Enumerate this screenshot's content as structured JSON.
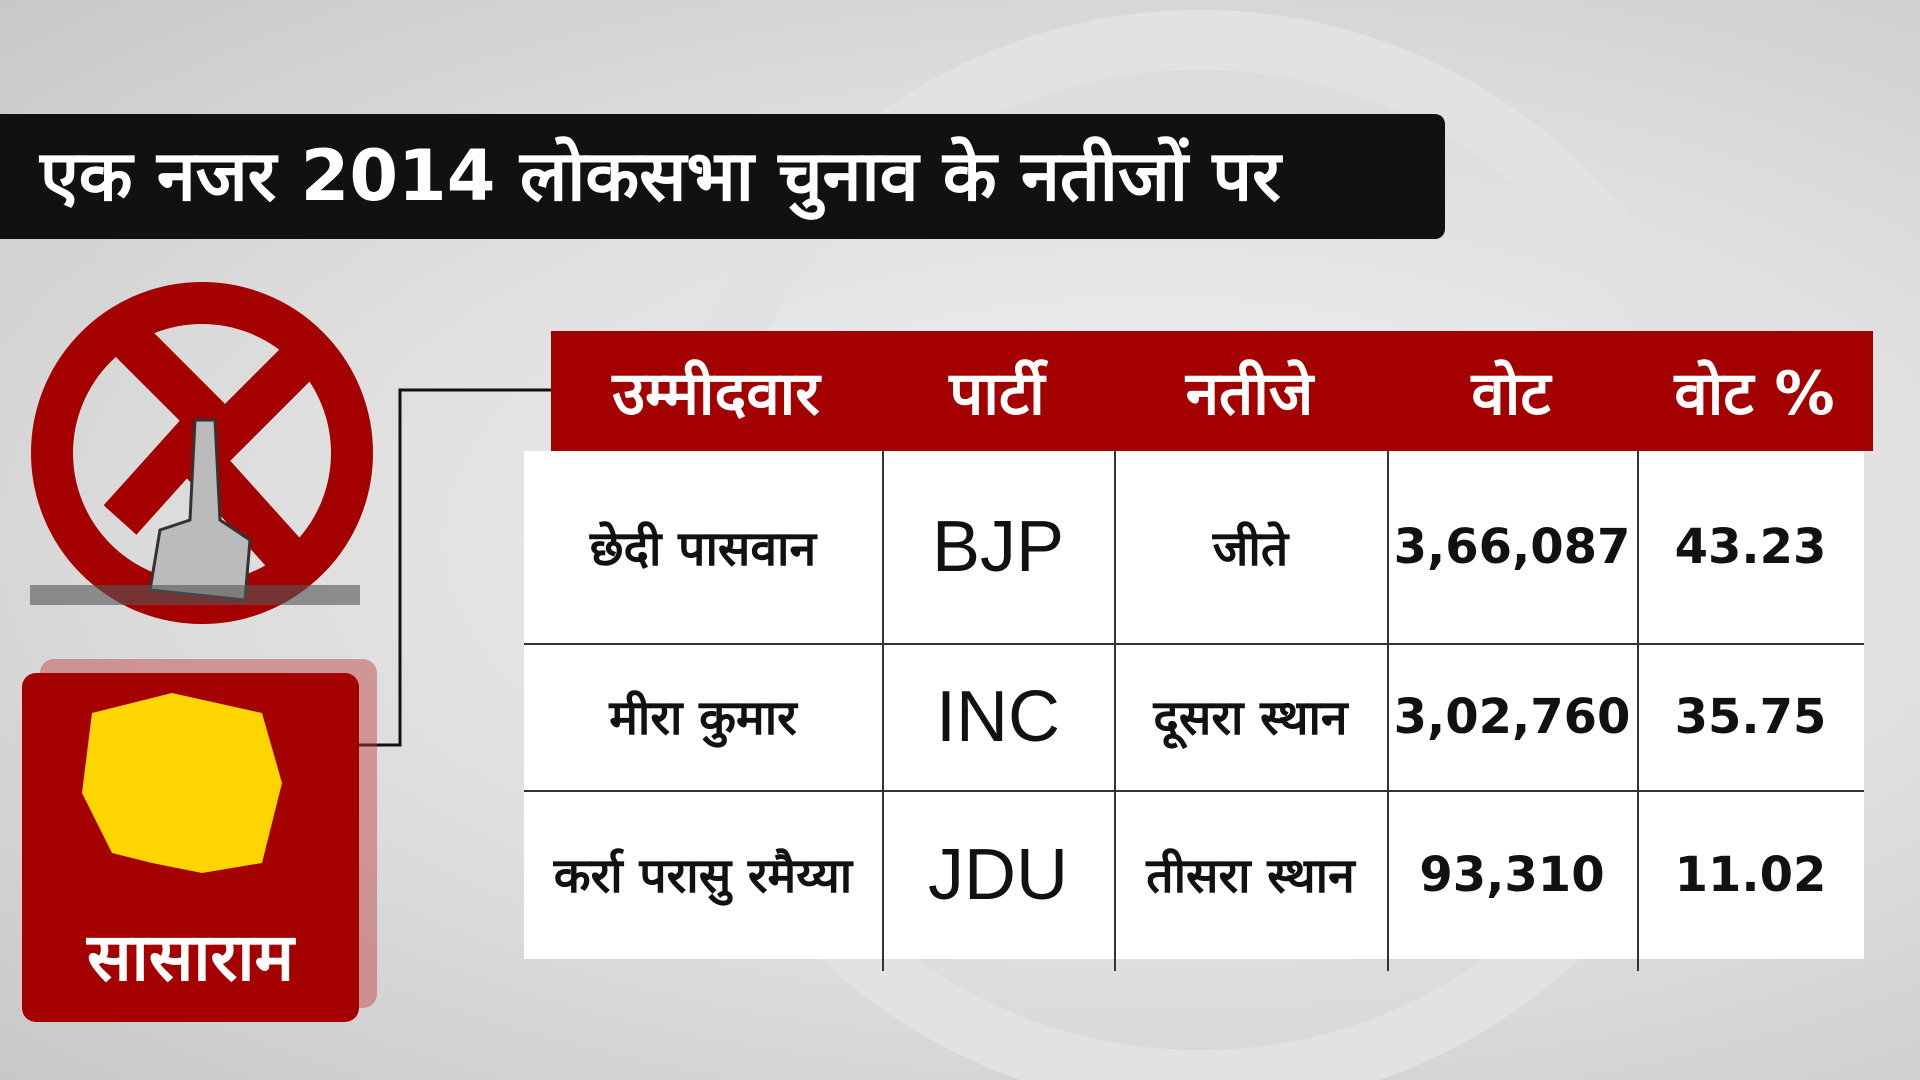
{
  "header": {
    "title": "एक नजर 2014 लोकसभा चुनाव के नतीजों पर"
  },
  "constituency": "सासाराम",
  "table": {
    "headers": [
      "उम्मीदवार",
      "पार्टी",
      "नतीजे",
      "वोट",
      "वोट %"
    ],
    "rows": [
      [
        "छेदी पासवान",
        "BJP",
        "जीते",
        "3,66,087",
        "43.23"
      ],
      [
        "मीरा कुमार",
        "INC",
        "दूसरा स्थान",
        "3,02,760",
        "35.75"
      ],
      [
        "कर्रा परासु रमैय्या",
        "JDU",
        "तीसरा स्थान",
        "93,310",
        "11.02"
      ]
    ]
  }
}
